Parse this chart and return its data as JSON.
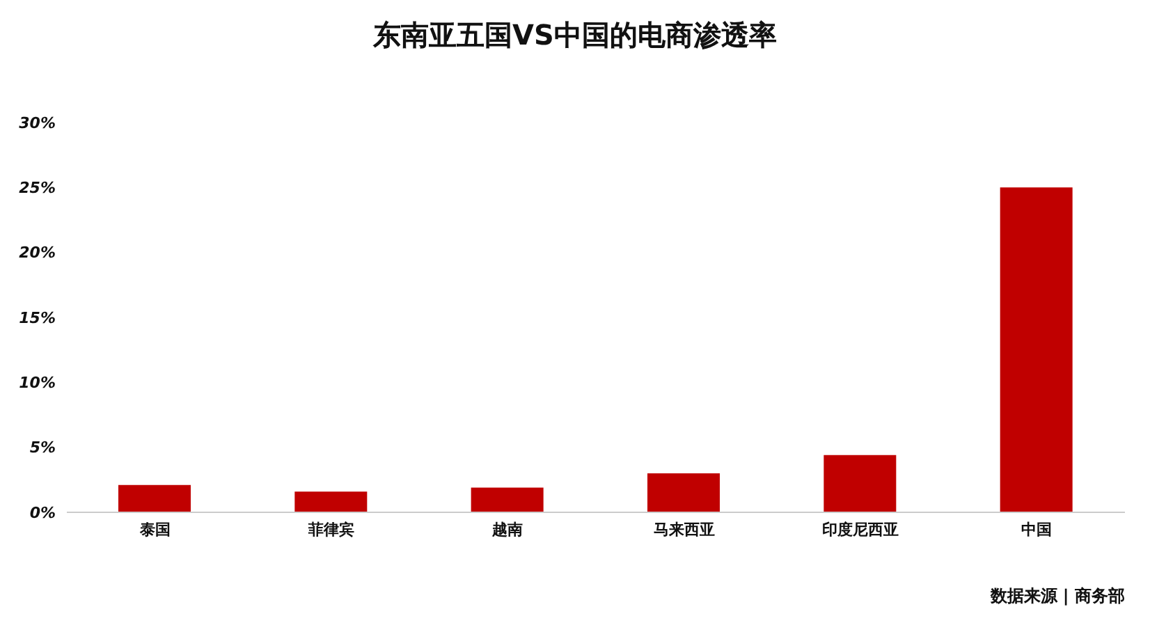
{
  "chart_data": {
    "type": "bar",
    "title": "东南亚五国VS中国的电商渗透率",
    "categories": [
      "泰国",
      "菲律宾",
      "越南",
      "马来西亚",
      "印度尼西亚",
      "中国"
    ],
    "values": [
      2.1,
      1.6,
      1.9,
      3.0,
      4.4,
      25.0
    ],
    "color": "#c00000",
    "ylim": [
      0,
      30
    ],
    "yticks": [
      {
        "value": 0,
        "label": "0%"
      },
      {
        "value": 5,
        "label": "5%"
      },
      {
        "value": 10,
        "label": "10%"
      },
      {
        "value": 15,
        "label": "15%"
      },
      {
        "value": 20,
        "label": "20%"
      },
      {
        "value": 25,
        "label": "25%"
      },
      {
        "value": 30,
        "label": "30%"
      }
    ],
    "grid": false,
    "annotations": [
      "数据来源 | 商务部"
    ]
  }
}
